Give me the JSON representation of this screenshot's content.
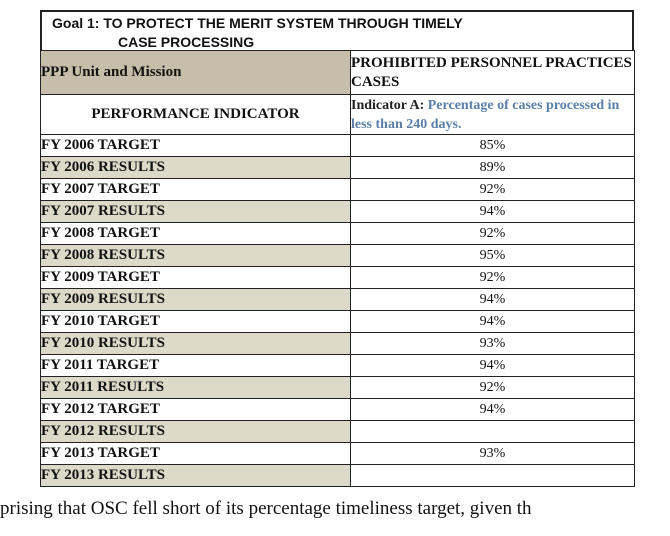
{
  "goal": {
    "line1": "Goal 1:  TO PROTECT THE MERIT SYSTEM THROUGH TIMELY",
    "line2": "CASE PROCESSING"
  },
  "table": {
    "header": {
      "col1": "PPP Unit and Mission",
      "col2": "PROHIBITED PERSONNEL PRACTICES CASES"
    },
    "indicator": {
      "label": "PERFORMANCE INDICATOR",
      "name": "Indicator A:",
      "description": "Percentage of cases processed in less than 240 days."
    },
    "rows": [
      {
        "label": "FY 2006 TARGET",
        "value": "85%"
      },
      {
        "label": "FY 2006 RESULTS",
        "value": "89%"
      },
      {
        "label": "FY 2007 TARGET",
        "value": "92%"
      },
      {
        "label": "FY 2007 RESULTS",
        "value": "94%"
      },
      {
        "label": "FY 2008 TARGET",
        "value": "92%"
      },
      {
        "label": "FY 2008 RESULTS",
        "value": "95%"
      },
      {
        "label": "FY 2009 TARGET",
        "value": "92%"
      },
      {
        "label": "FY 2009 RESULTS",
        "value": "94%"
      },
      {
        "label": "FY 2010 TARGET",
        "value": "94%"
      },
      {
        "label": "FY 2010 RESULTS",
        "value": "93%"
      },
      {
        "label": "FY 2011 TARGET",
        "value": "94%"
      },
      {
        "label": "FY 2011 RESULTS",
        "value": "92%"
      },
      {
        "label": "FY 2012 TARGET",
        "value": "94%"
      },
      {
        "label": "FY 2012 RESULTS",
        "value": ""
      },
      {
        "label": "FY 2013 TARGET",
        "value": "93%"
      },
      {
        "label": "FY 2013 RESULTS",
        "value": ""
      }
    ]
  },
  "body_text": "prising that OSC fell short of its percentage timeliness target, given th",
  "colors": {
    "header_fill": "#c6beaa",
    "results_fill": "#ddd9c8",
    "indicator_text": "#5a7fa8"
  }
}
